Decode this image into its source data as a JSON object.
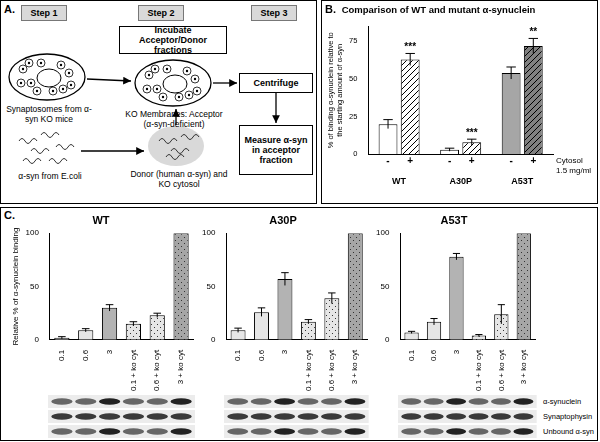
{
  "panel_labels": [
    "A.",
    "B.",
    "C."
  ],
  "diagram": {
    "steps": [
      "Step 1",
      "Step 2",
      "Step 3"
    ],
    "boxes": [
      "Incubate Acceptor/Donor fractions",
      "Centrifuge",
      "Measure α-syn in acceptor fraction"
    ],
    "captions": [
      "Synaptosomes from α-syn KO mice",
      "KO Membranes: Acceptor (α-syn-deficient)",
      "α-syn from E.coli",
      "Donor (human α-syn) and KO cytosol"
    ]
  },
  "blot_rows": [
    "α-synuclein",
    "Synaptophysin",
    "Unbound α-syn"
  ],
  "chart_data": [
    {
      "type": "bar",
      "title": "Comparison of WT and mutant α-synuclein",
      "y_label": [
        "% of binding α-synuclein relative to",
        "the starting amount of α-syn"
      ],
      "categories": [
        "WT",
        "A30P",
        "A53T"
      ],
      "series": [
        {
          "name": "-",
          "colors": [
            "#ffffff",
            "#ffffff",
            "#a6a6a6"
          ],
          "values": [
            20,
            3,
            54
          ],
          "errors": [
            3,
            1,
            4
          ]
        },
        {
          "name": "+",
          "colors": [
            "#ffffff",
            "#ffffff",
            "#808080"
          ],
          "values": [
            63,
            8,
            72
          ],
          "errors": [
            4,
            2,
            5
          ],
          "significance": [
            "***",
            "***",
            "**"
          ]
        }
      ],
      "annotations": [
        "Cytosol",
        "1.5 mg/ml"
      ],
      "ylim": [
        0,
        85
      ],
      "yticks": [
        0,
        25,
        50,
        75
      ],
      "grid": false
    },
    {
      "type": "bar",
      "title": "WT",
      "y_label": "Relative % of α-synuclein binding",
      "categories": [
        "0.1",
        "0.6",
        "3",
        "0.1 + ko cyt",
        "0.6 + ko cyt",
        "3 + ko cyt"
      ],
      "values": [
        2,
        9,
        30,
        15,
        23,
        100
      ],
      "errors": [
        1,
        1.5,
        3,
        2,
        2,
        null
      ],
      "colors": [
        "#e6e6e6",
        "#e6e6e6",
        "#b3b3b3",
        "#e6e6e6",
        "#e6e6e6",
        "#a6a6a6"
      ],
      "ylim": [
        0,
        100
      ],
      "yticks": [
        0,
        50,
        100
      ],
      "grid": false
    },
    {
      "type": "bar",
      "title": "A30P",
      "categories": [
        "0.1",
        "0.6",
        "3",
        "0.1 + ko cyt",
        "0.6 + ko cyt",
        "3 + ko cyt"
      ],
      "values": [
        9,
        26,
        57,
        17,
        39,
        100
      ],
      "errors": [
        2,
        4,
        6,
        2,
        5,
        null
      ],
      "colors": [
        "#e6e6e6",
        "#e6e6e6",
        "#b3b3b3",
        "#e6e6e6",
        "#e6e6e6",
        "#a6a6a6"
      ],
      "ylim": [
        0,
        100
      ],
      "yticks": [
        0,
        50,
        100
      ],
      "grid": false
    },
    {
      "type": "bar",
      "title": "A53T",
      "categories": [
        "0.1",
        "0.6",
        "3",
        "0.1 + ko cyt",
        "0.6 + ko cyt",
        "3 + ko cyt"
      ],
      "values": [
        7,
        17,
        78,
        4,
        24,
        100
      ],
      "errors": [
        1,
        3,
        3,
        1,
        9,
        null
      ],
      "colors": [
        "#e6e6e6",
        "#e6e6e6",
        "#b3b3b3",
        "#e6e6e6",
        "#e6e6e6",
        "#a6a6a6"
      ],
      "ylim": [
        0,
        100
      ],
      "yticks": [
        0,
        50,
        100
      ],
      "grid": false
    }
  ]
}
